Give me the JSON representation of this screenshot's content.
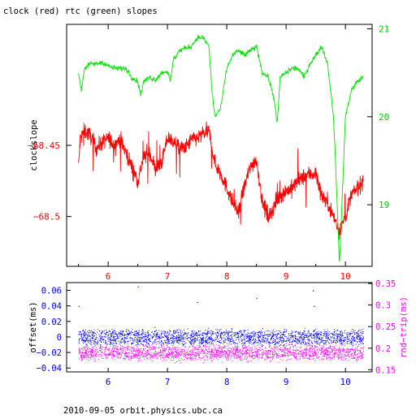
{
  "title": "clock (red) rtc (green) slopes",
  "footer": "2010-09-05  orbit.physics.ubc.ca",
  "colors": {
    "clock": "#ff0000",
    "rtc": "#00e000",
    "offset": "#0000ff",
    "rndtrip": "#ff00ff",
    "axis": "#000000",
    "label_left_top": "#ff0000",
    "label_right_top": "#00cc00",
    "label_left_bottom": "#0000ff",
    "label_right_bottom": "#ff00ff"
  },
  "chart_data": [
    {
      "type": "line",
      "panel": "slopes",
      "xlim": [
        5.3,
        10.45
      ],
      "x_ticks": [
        6,
        7,
        8,
        9,
        10
      ],
      "x_tick_labels": [
        "6",
        "7",
        "8",
        "9",
        "10"
      ],
      "grid": false,
      "left_axis": {
        "label": "clockslope",
        "ylim": [
          -68.535,
          -68.365
        ],
        "ticks": [
          -68.45,
          -68.5
        ],
        "tick_labels": [
          "−68.45",
          "−68.5"
        ]
      },
      "right_axis": {
        "ylim": [
          18.3,
          21.05
        ],
        "ticks": [
          19,
          20,
          21
        ],
        "tick_labels": [
          "19",
          "20",
          "21"
        ]
      },
      "series": [
        {
          "id": "clock",
          "axis": "left",
          "x": [
            5.5,
            5.53,
            5.6,
            5.7,
            5.8,
            5.9,
            6.0,
            6.1,
            6.2,
            6.3,
            6.4,
            6.5,
            6.6,
            6.7,
            6.8,
            6.9,
            7.0,
            7.1,
            7.2,
            7.3,
            7.4,
            7.5,
            7.6,
            7.7,
            7.8,
            7.9,
            8.0,
            8.1,
            8.2,
            8.3,
            8.4,
            8.5,
            8.6,
            8.7,
            8.8,
            8.9,
            9.0,
            9.1,
            9.2,
            9.3,
            9.4,
            9.5,
            9.6,
            9.7,
            9.8,
            9.9,
            10.0,
            10.1,
            10.2,
            10.3
          ],
          "y": [
            -68.465,
            -68.445,
            -68.44,
            -68.443,
            -68.452,
            -68.448,
            -68.445,
            -68.45,
            -68.445,
            -68.455,
            -68.465,
            -68.475,
            -68.458,
            -68.455,
            -68.467,
            -68.462,
            -68.445,
            -68.447,
            -68.452,
            -68.452,
            -68.446,
            -68.445,
            -68.442,
            -68.44,
            -68.463,
            -68.47,
            -68.48,
            -68.49,
            -68.498,
            -68.478,
            -68.465,
            -68.46,
            -68.49,
            -68.5,
            -68.493,
            -68.485,
            -68.482,
            -68.48,
            -68.475,
            -68.472,
            -68.47,
            -68.47,
            -68.485,
            -68.49,
            -68.5,
            -68.51,
            -68.5,
            -68.485,
            -68.48,
            -68.475
          ]
        },
        {
          "id": "rtc",
          "axis": "right",
          "x": [
            5.5,
            5.55,
            5.6,
            5.7,
            5.8,
            5.9,
            6.0,
            6.1,
            6.2,
            6.3,
            6.4,
            6.5,
            6.55,
            6.6,
            6.7,
            6.8,
            6.9,
            7.0,
            7.05,
            7.1,
            7.2,
            7.3,
            7.4,
            7.5,
            7.6,
            7.7,
            7.75,
            7.8,
            7.9,
            8.0,
            8.1,
            8.2,
            8.3,
            8.4,
            8.5,
            8.6,
            8.7,
            8.8,
            8.85,
            8.9,
            9.0,
            9.1,
            9.2,
            9.3,
            9.4,
            9.5,
            9.6,
            9.7,
            9.8,
            9.85,
            9.9,
            10.0,
            10.1,
            10.2,
            10.3
          ],
          "y": [
            20.5,
            20.3,
            20.55,
            20.6,
            20.6,
            20.62,
            20.58,
            20.55,
            20.55,
            20.55,
            20.45,
            20.4,
            20.25,
            20.4,
            20.45,
            20.42,
            20.5,
            20.52,
            20.4,
            20.65,
            20.75,
            20.78,
            20.8,
            20.9,
            20.9,
            20.8,
            20.3,
            20.0,
            20.1,
            20.55,
            20.7,
            20.75,
            20.7,
            20.75,
            20.8,
            20.5,
            20.45,
            20.2,
            19.9,
            20.45,
            20.5,
            20.55,
            20.55,
            20.45,
            20.6,
            20.7,
            20.8,
            20.6,
            20.0,
            19.2,
            18.3,
            20.0,
            20.3,
            20.4,
            20.45
          ]
        }
      ]
    },
    {
      "type": "scatter",
      "panel": "offsets",
      "xlim": [
        5.3,
        10.45
      ],
      "x_ticks": [
        6,
        7,
        8,
        9,
        10
      ],
      "x_tick_labels": [
        "6",
        "7",
        "8",
        "9",
        "10"
      ],
      "grid": false,
      "left_axis": {
        "label": "offset(ms)",
        "ylim": [
          -0.045,
          0.07
        ],
        "ticks": [
          0.06,
          0.04,
          0.02,
          0,
          -0.02,
          -0.04
        ],
        "tick_labels": [
          "0.06",
          "0.04",
          "0.02",
          "0",
          "−0.02",
          "−0.04"
        ]
      },
      "right_axis": {
        "label": "rnd−trip(ms)",
        "ylim": [
          0.145,
          0.352
        ],
        "ticks": [
          0.35,
          0.3,
          0.25,
          0.2,
          0.15
        ],
        "tick_labels": [
          "0.35",
          "0.3",
          "0.25",
          "0.2",
          "0.15"
        ]
      },
      "series": [
        {
          "id": "offset",
          "axis": "left",
          "x_range": [
            5.5,
            10.3
          ],
          "band_center": 0,
          "band_halfwidth": 0.008,
          "spread": 0.004
        },
        {
          "id": "rndtrip",
          "axis": "right",
          "x_range": [
            5.5,
            10.3
          ],
          "band_center": 0.19,
          "band_halfwidth": 0.012,
          "spread": 0.01
        },
        {
          "id": "outliers",
          "axis": "left",
          "x": [
            5.5,
            6.5,
            7.5,
            8.5,
            9.45,
            9.47
          ],
          "y": [
            0.04,
            0.065,
            0.045,
            0.05,
            0.06,
            0.04
          ]
        }
      ]
    }
  ]
}
